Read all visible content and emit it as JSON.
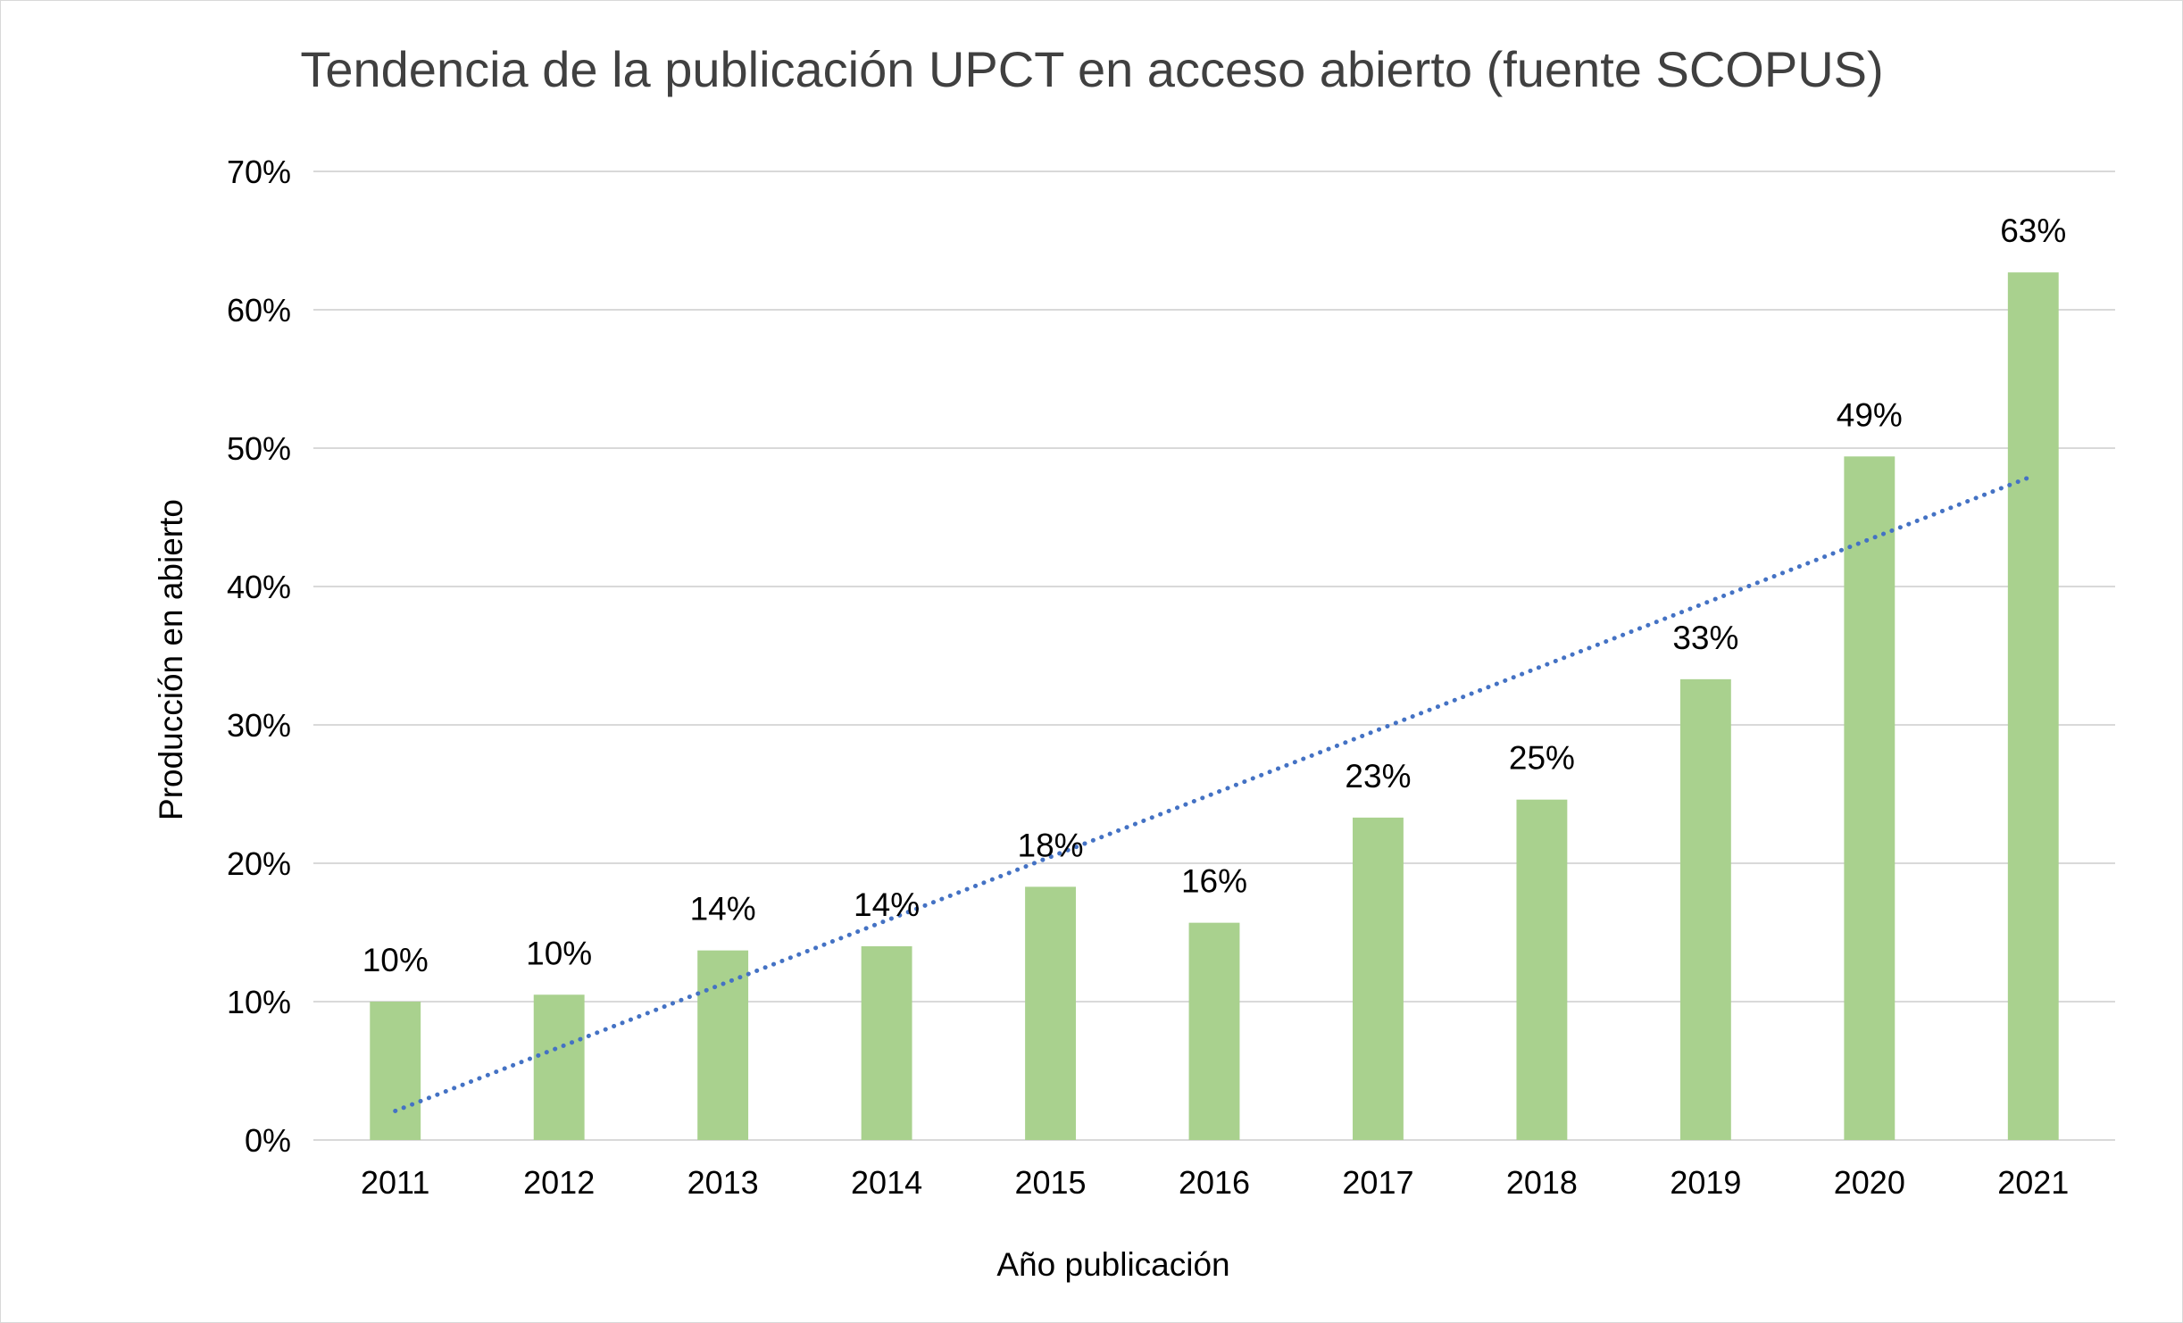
{
  "chart_data": {
    "type": "bar",
    "title": "Tendencia de la publicación UPCT en acceso abierto (fuente SCOPUS)",
    "xlabel": "Año publicación",
    "ylabel": "Producción en abierto",
    "categories": [
      "2011",
      "2012",
      "2013",
      "2014",
      "2015",
      "2016",
      "2017",
      "2018",
      "2019",
      "2020",
      "2021"
    ],
    "series": [
      {
        "values": [
          0.1,
          0.105,
          0.137,
          0.14,
          0.183,
          0.157,
          0.233,
          0.246,
          0.333,
          0.494,
          0.627
        ],
        "data_labels": [
          "10%",
          "10%",
          "14%",
          "14%",
          "18%",
          "16%",
          "23%",
          "25%",
          "33%",
          "49%",
          "63%"
        ],
        "color": "#a9d18e"
      }
    ],
    "trendline": {
      "type": "linear",
      "style": "dotted",
      "color": "#4472c4",
      "start_value": 0.021,
      "end_value": 0.48
    },
    "ylim": [
      0,
      0.7
    ],
    "yticks": [
      0,
      0.1,
      0.2,
      0.3,
      0.4,
      0.5,
      0.6,
      0.7
    ],
    "ytick_labels": [
      "0%",
      "10%",
      "20%",
      "30%",
      "40%",
      "50%",
      "60%",
      "70%"
    ],
    "grid": "horizontal",
    "legend": "none",
    "gridline_color": "#d9d9d9"
  }
}
